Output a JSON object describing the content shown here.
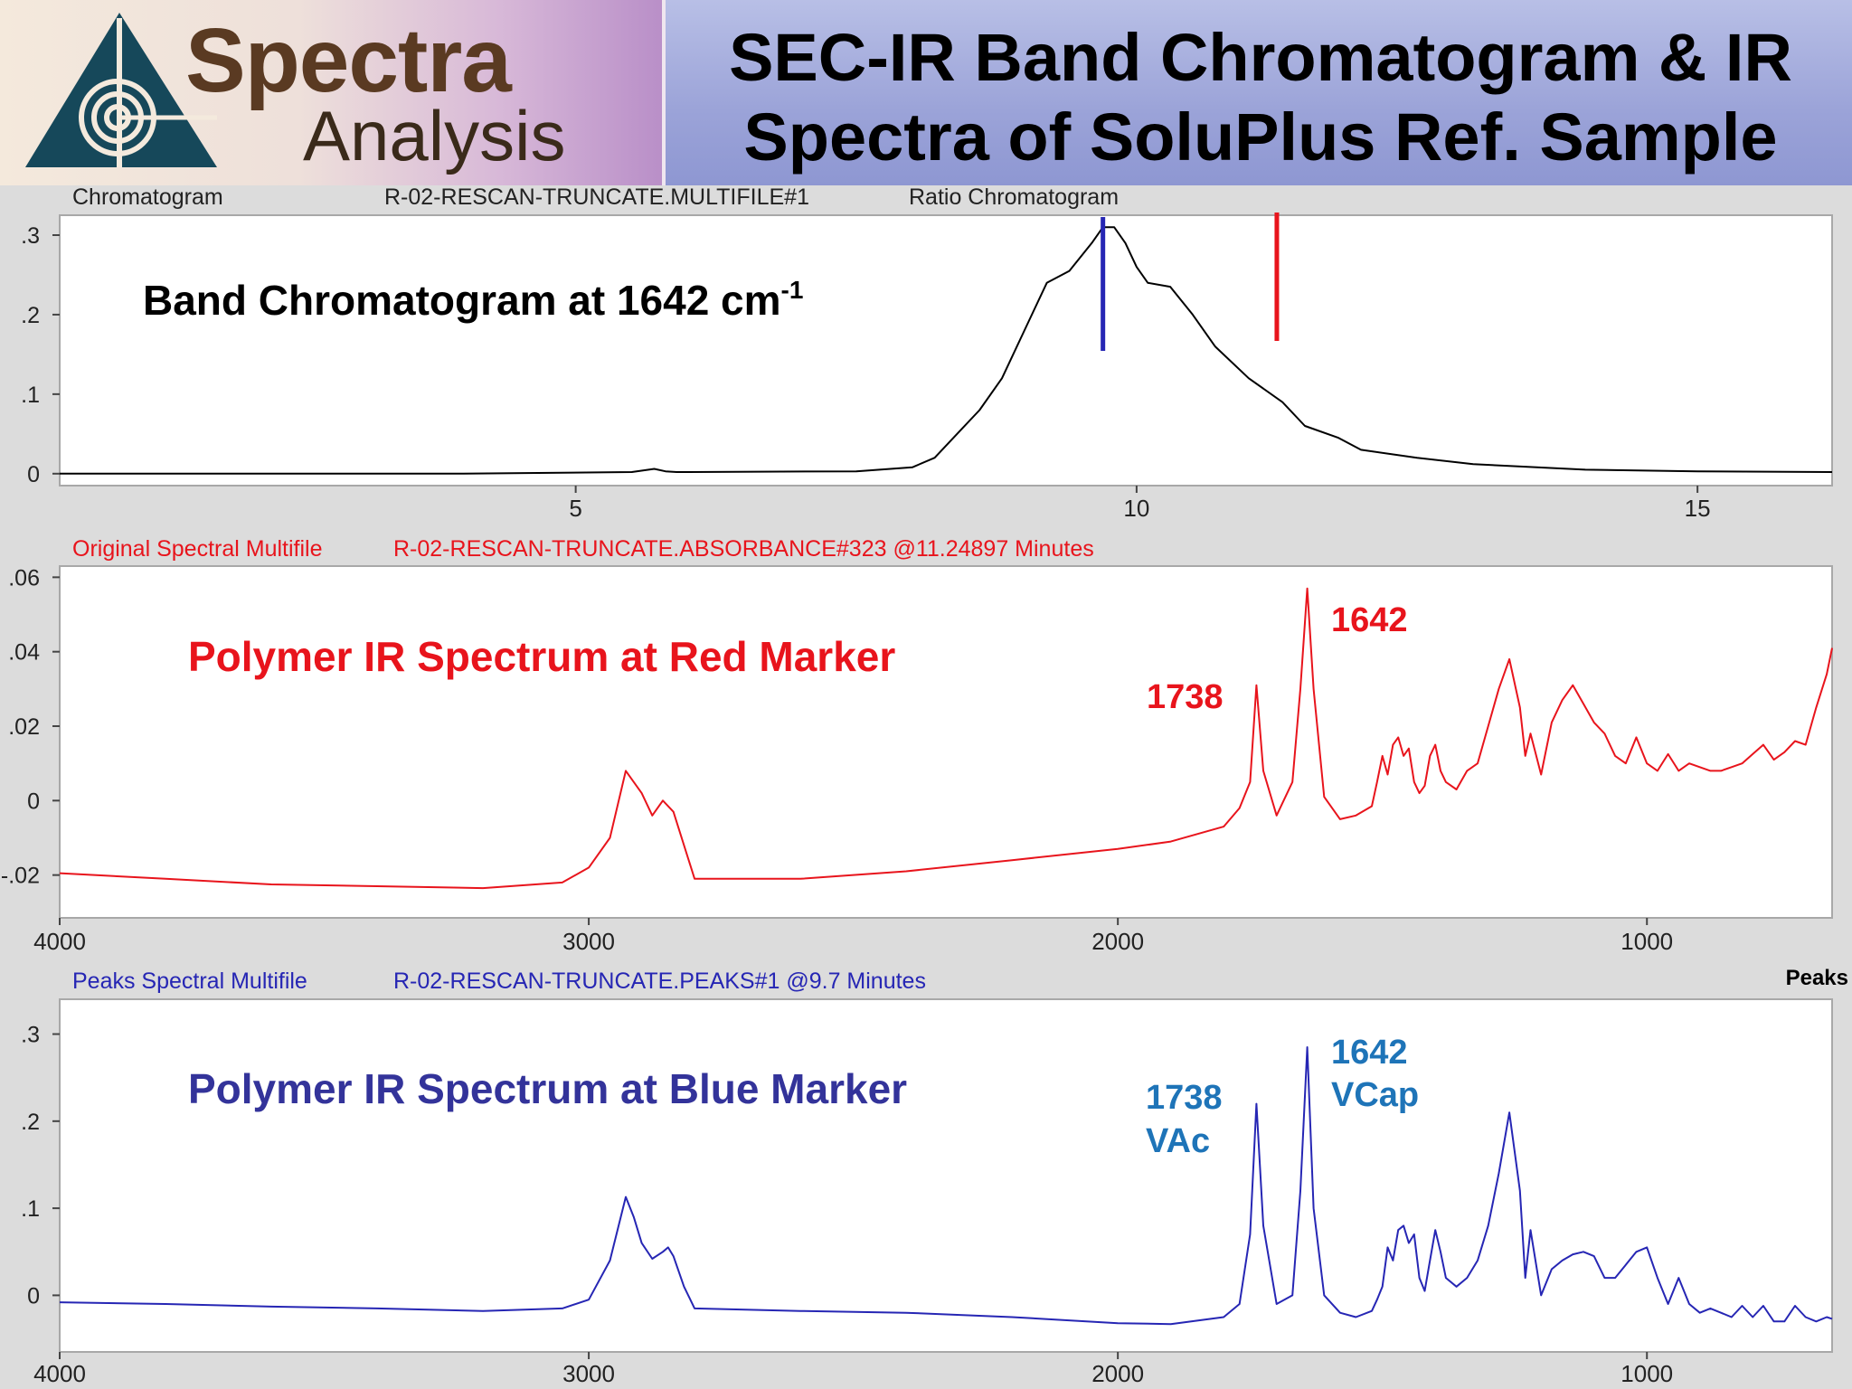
{
  "header": {
    "logo_word1": "Spectra",
    "logo_word2": "Analysis",
    "title_line1": "SEC-IR Band Chromatogram & IR",
    "title_line2": "Spectra of SoluPlus Ref. Sample"
  },
  "colors": {
    "red": "#e8141c",
    "blue": "#2626b4",
    "annotation_blue": "#1e74b8",
    "title_purple": "#33339a"
  },
  "chart_data": [
    {
      "type": "line",
      "panel": "chromatogram",
      "header_left": "Chromatogram",
      "header_mid": "R-02-RESCAN-TRUNCATE.MULTIFILE#1",
      "header_right": "Ratio Chromatogram",
      "annotation": "Band Chromatogram at 1642 cm",
      "annotation_sup": "-1",
      "xlim": [
        0.4,
        16.2
      ],
      "ylim": [
        -0.015,
        0.325
      ],
      "x_ticks": [
        5,
        10,
        15
      ],
      "x_tick_labels": [
        "5",
        "10",
        "15"
      ],
      "y_ticks": [
        0,
        0.1,
        0.2,
        0.3
      ],
      "y_tick_labels": [
        "0",
        ".1",
        ".2",
        ".3"
      ],
      "markers": [
        {
          "x": 9.7,
          "color": "#2626b4"
        },
        {
          "x": 11.25,
          "color": "#e8141c"
        }
      ],
      "line_color": "#000000",
      "series": [
        {
          "x": [
            0.4,
            2,
            4,
            5.5,
            5.7,
            5.8,
            5.9,
            7.5,
            8.0,
            8.2,
            8.4,
            8.6,
            8.8,
            9.0,
            9.2,
            9.4,
            9.6,
            9.7,
            9.8,
            9.9,
            10.0,
            10.1,
            10.3,
            10.5,
            10.7,
            11.0,
            11.3,
            11.5,
            11.8,
            12.0,
            12.5,
            13.0,
            14.0,
            15.0,
            16.2
          ],
          "y": [
            0.0,
            0.0,
            0.0,
            0.002,
            0.006,
            0.003,
            0.002,
            0.003,
            0.008,
            0.02,
            0.05,
            0.08,
            0.12,
            0.18,
            0.24,
            0.255,
            0.29,
            0.31,
            0.31,
            0.29,
            0.26,
            0.24,
            0.235,
            0.2,
            0.16,
            0.12,
            0.09,
            0.06,
            0.045,
            0.03,
            0.02,
            0.012,
            0.005,
            0.003,
            0.002
          ]
        }
      ]
    },
    {
      "type": "line",
      "panel": "red-spectrum",
      "header_left": "Original Spectral Multifile",
      "header_mid": "R-02-RESCAN-TRUNCATE.ABSORBANCE#323 @11.24897 Minutes",
      "annotation": "Polymer IR Spectrum at Red Marker",
      "peak_labels": [
        {
          "text": "1738",
          "x": 1738,
          "y": 0.029
        },
        {
          "text": "1642",
          "x": 1642,
          "y": 0.05
        }
      ],
      "xlim": [
        4000,
        650
      ],
      "ylim": [
        -0.0315,
        0.063
      ],
      "x_ticks": [
        4000,
        3000,
        2000,
        1000
      ],
      "x_tick_labels": [
        "4000",
        "3000",
        "2000",
        "1000"
      ],
      "y_ticks": [
        -0.02,
        0,
        0.02,
        0.04,
        0.06
      ],
      "y_tick_labels": [
        "-.02",
        "0",
        ".02",
        ".04",
        ".06"
      ],
      "line_color": "#e8141c",
      "series": [
        {
          "x": [
            4000,
            3800,
            3600,
            3400,
            3200,
            3050,
            3000,
            2960,
            2930,
            2900,
            2880,
            2860,
            2840,
            2800,
            2600,
            2400,
            2200,
            2000,
            1900,
            1800,
            1770,
            1750,
            1738,
            1725,
            1700,
            1670,
            1655,
            1642,
            1630,
            1610,
            1580,
            1550,
            1520,
            1510,
            1500,
            1490,
            1480,
            1470,
            1460,
            1450,
            1440,
            1430,
            1420,
            1410,
            1400,
            1390,
            1380,
            1360,
            1340,
            1320,
            1300,
            1280,
            1260,
            1240,
            1230,
            1220,
            1200,
            1180,
            1160,
            1140,
            1120,
            1100,
            1080,
            1060,
            1040,
            1020,
            1000,
            980,
            960,
            940,
            920,
            900,
            880,
            860,
            840,
            820,
            800,
            780,
            760,
            740,
            720,
            700,
            680,
            660,
            650
          ],
          "y": [
            -0.0195,
            -0.021,
            -0.0225,
            -0.023,
            -0.0235,
            -0.022,
            -0.018,
            -0.01,
            0.008,
            0.002,
            -0.004,
            0.0,
            -0.003,
            -0.021,
            -0.021,
            -0.019,
            -0.016,
            -0.013,
            -0.011,
            -0.007,
            -0.002,
            0.005,
            0.031,
            0.008,
            -0.004,
            0.005,
            0.03,
            0.057,
            0.03,
            0.001,
            -0.005,
            -0.004,
            -0.0015,
            0.005,
            0.012,
            0.007,
            0.015,
            0.017,
            0.012,
            0.014,
            0.005,
            0.002,
            0.004,
            0.012,
            0.015,
            0.008,
            0.005,
            0.003,
            0.008,
            0.01,
            0.02,
            0.03,
            0.038,
            0.025,
            0.012,
            0.018,
            0.007,
            0.021,
            0.027,
            0.031,
            0.026,
            0.021,
            0.018,
            0.012,
            0.01,
            0.017,
            0.01,
            0.008,
            0.0125,
            0.008,
            0.01,
            0.009,
            0.008,
            0.008,
            0.009,
            0.01,
            0.0125,
            0.015,
            0.011,
            0.013,
            0.016,
            0.015,
            0.025,
            0.034,
            0.041
          ]
        }
      ]
    },
    {
      "type": "line",
      "panel": "blue-spectrum",
      "header_left": "Peaks Spectral Multifile",
      "header_mid": "R-02-RESCAN-TRUNCATE.PEAKS#1 @9.7 Minutes",
      "header_right": "Peaks",
      "annotation": "Polymer IR Spectrum at Blue Marker",
      "peak_labels": [
        {
          "text1": "1738",
          "text2": "VAc",
          "x": 1738
        },
        {
          "text1": "1642",
          "text2": "VCap",
          "x": 1642
        }
      ],
      "xlim": [
        4000,
        650
      ],
      "ylim": [
        -0.065,
        0.34
      ],
      "x_ticks": [
        4000,
        3000,
        2000,
        1000
      ],
      "x_tick_labels": [
        "4000",
        "3000",
        "2000",
        "1000"
      ],
      "y_ticks": [
        0,
        0.1,
        0.2,
        0.3
      ],
      "y_tick_labels": [
        "0",
        ".1",
        ".2",
        ".3"
      ],
      "line_color": "#2626b4",
      "series": [
        {
          "x": [
            4000,
            3800,
            3600,
            3400,
            3200,
            3050,
            3000,
            2960,
            2930,
            2915,
            2900,
            2880,
            2860,
            2850,
            2840,
            2820,
            2800,
            2600,
            2400,
            2200,
            2000,
            1900,
            1800,
            1770,
            1750,
            1738,
            1725,
            1700,
            1670,
            1655,
            1642,
            1630,
            1610,
            1580,
            1550,
            1520,
            1510,
            1500,
            1490,
            1480,
            1470,
            1460,
            1450,
            1440,
            1430,
            1420,
            1410,
            1400,
            1390,
            1380,
            1360,
            1340,
            1320,
            1300,
            1280,
            1260,
            1240,
            1230,
            1220,
            1200,
            1180,
            1160,
            1140,
            1120,
            1100,
            1080,
            1060,
            1040,
            1020,
            1000,
            980,
            960,
            940,
            920,
            900,
            880,
            860,
            840,
            820,
            800,
            780,
            760,
            740,
            720,
            700,
            680,
            660,
            650
          ],
          "y": [
            -0.008,
            -0.01,
            -0.013,
            -0.015,
            -0.018,
            -0.015,
            -0.005,
            0.04,
            0.113,
            0.09,
            0.06,
            0.042,
            0.05,
            0.055,
            0.045,
            0.01,
            -0.015,
            -0.018,
            -0.02,
            -0.025,
            -0.032,
            -0.033,
            -0.025,
            -0.01,
            0.07,
            0.22,
            0.08,
            -0.01,
            0.0,
            0.12,
            0.285,
            0.1,
            0.0,
            -0.02,
            -0.025,
            -0.018,
            -0.005,
            0.01,
            0.055,
            0.04,
            0.075,
            0.08,
            0.06,
            0.07,
            0.02,
            0.005,
            0.04,
            0.075,
            0.05,
            0.02,
            0.01,
            0.02,
            0.04,
            0.08,
            0.14,
            0.21,
            0.12,
            0.02,
            0.075,
            0.0,
            0.03,
            0.04,
            0.047,
            0.05,
            0.045,
            0.02,
            0.02,
            0.035,
            0.05,
            0.055,
            0.02,
            -0.01,
            0.02,
            -0.01,
            -0.02,
            -0.015,
            -0.02,
            -0.025,
            -0.012,
            -0.025,
            -0.012,
            -0.03,
            -0.03,
            -0.012,
            -0.025,
            -0.03,
            -0.025,
            -0.027
          ]
        }
      ]
    }
  ]
}
